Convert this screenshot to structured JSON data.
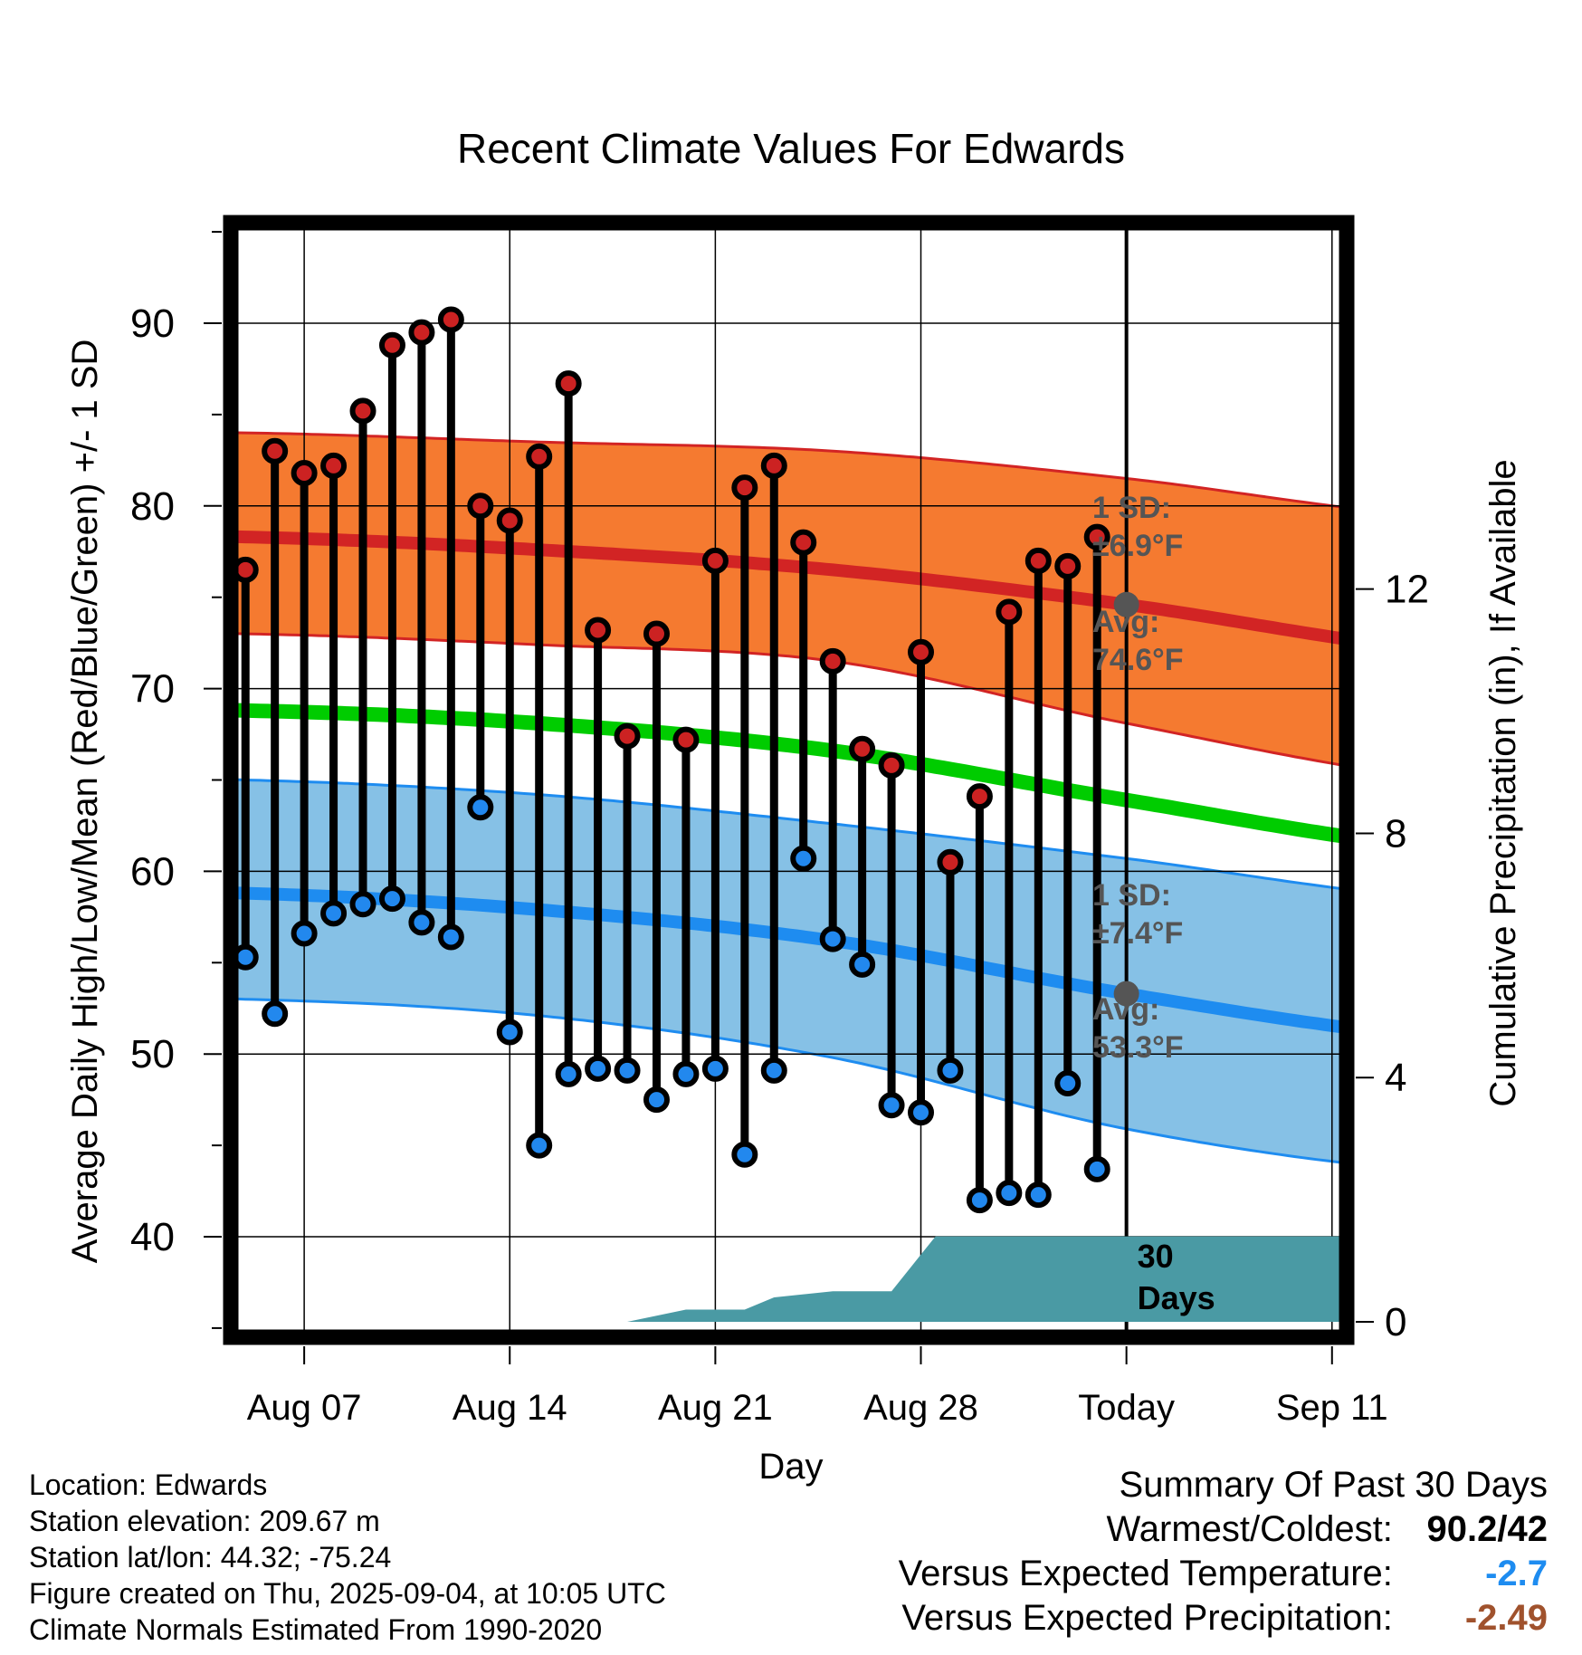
{
  "chart_data": {
    "type": "line",
    "title": "Recent Climate Values For Edwards",
    "xlabel": "Day",
    "ylabel": "Average Daily High/Low/Mean (Red/Blue/Green) +/- 1 SD",
    "y2label": "Cumulative Precipitation (in), If Available",
    "ylim": [
      34.5,
      95.5
    ],
    "y_ticks": [
      40,
      50,
      60,
      70,
      80,
      90
    ],
    "y2lim": [
      0,
      18
    ],
    "y2_ticks": [
      0,
      4,
      8,
      12
    ],
    "x_range_days": [
      -30.5,
      7.5
    ],
    "x_ticks": [
      {
        "day": -28,
        "label": "Aug 07"
      },
      {
        "day": -21,
        "label": "Aug 14"
      },
      {
        "day": -14,
        "label": "Aug 21"
      },
      {
        "day": -7,
        "label": "Aug 28"
      },
      {
        "day": 0,
        "label": "Today"
      },
      {
        "day": 7,
        "label": "Sep 11"
      }
    ],
    "grid": true,
    "high_normal": {
      "x": [
        -30,
        -20,
        -10,
        0,
        10,
        20
      ],
      "avg": [
        78.3,
        77.6,
        76.5,
        74.6,
        72.2,
        71.3
      ],
      "upper": [
        84.0,
        83.5,
        83.0,
        81.5,
        79.5,
        79.0
      ],
      "lower": [
        73.0,
        72.4,
        71.5,
        68.1,
        65.2,
        64.3
      ]
    },
    "mean_normal": {
      "x": [
        -30,
        -20,
        -10,
        0,
        10,
        20
      ],
      "values": [
        68.8,
        68.1,
        66.6,
        63.9,
        61.4,
        60.7
      ]
    },
    "low_normal": {
      "x": [
        -30,
        -20,
        -10,
        0,
        10,
        20
      ],
      "avg": [
        58.8,
        57.9,
        56.2,
        53.3,
        51.0,
        50.3
      ],
      "upper": [
        65.0,
        64.2,
        62.6,
        60.7,
        58.6,
        58.1
      ],
      "lower": [
        53.0,
        52.1,
        49.8,
        45.9,
        43.6,
        42.9
      ]
    },
    "days": [
      -30,
      -29,
      -28,
      -27,
      -26,
      -25,
      -24,
      -23,
      -22,
      -21,
      -20,
      -19,
      -18,
      -17,
      -16,
      -15,
      -14,
      -13,
      -12,
      -11,
      -10,
      -9,
      -8,
      -7,
      -6,
      -5,
      -4,
      -3,
      -2,
      -1
    ],
    "highs": [
      76.5,
      83.0,
      81.8,
      82.2,
      85.2,
      88.8,
      89.5,
      90.2,
      80.0,
      79.2,
      82.7,
      86.7,
      73.2,
      67.4,
      73.0,
      67.2,
      77.0,
      81.0,
      82.2,
      78.0,
      71.5,
      66.7,
      65.8,
      72.0,
      60.5,
      64.1,
      74.2,
      77.0,
      76.7,
      78.3
    ],
    "lows": [
      55.3,
      52.2,
      56.6,
      57.7,
      58.2,
      58.5,
      57.2,
      56.4,
      63.5,
      51.2,
      45.0,
      48.9,
      49.2,
      49.1,
      47.5,
      48.9,
      49.2,
      44.5,
      49.1,
      60.7,
      56.3,
      54.9,
      47.2,
      46.8,
      49.1,
      42.0,
      42.4,
      42.3,
      48.4,
      43.7
    ],
    "precip": {
      "x": [
        -30,
        -17,
        -15,
        -13,
        -12,
        -10,
        -8,
        -7.5,
        -7,
        -6.5,
        7.5
      ],
      "values": [
        0,
        0,
        0.2,
        0.2,
        0.4,
        0.5,
        0.5,
        0.8,
        1.1,
        1.4,
        1.4
      ]
    },
    "precip_label_value": "30",
    "precip_label_unit": "Days",
    "annotations": {
      "high_sd_label": "1 SD:",
      "high_sd_value": "±6.9°F",
      "high_avg_label": "Avg:",
      "high_avg_value": "74.6°F",
      "low_sd_label": "1 SD:",
      "low_sd_value": "±7.4°F",
      "low_avg_label": "Avg:",
      "low_avg_value": "53.3°F"
    },
    "colors": {
      "high_band": "#f57a30",
      "high_line": "#d22424",
      "low_band": "#86c1e6",
      "low_line": "#1e8cf0",
      "mean_line": "#00cc00",
      "precip_fill": "#4a9aa4",
      "high_marker": "#cc2222",
      "low_marker": "#2288ee",
      "annotation": "#555555"
    }
  },
  "info": {
    "location": "Location: Edwards",
    "elevation": "Station elevation: 209.67 m",
    "latlon": "Station lat/lon: 44.32; -75.24",
    "created": "Figure created on Thu, 2025-09-04, at 10:05 UTC",
    "normals": "Climate Normals Estimated From 1990-2020"
  },
  "summary": {
    "title": "Summary Of Past 30 Days",
    "warm_cold_label": "Warmest/Coldest:",
    "warm_cold_value": "90.2/42",
    "temp_label": "Versus Expected Temperature:",
    "temp_value": "-2.7",
    "temp_color": "#1e8cf0",
    "precip_label": "Versus Expected Precipitation:",
    "precip_value": "-2.49",
    "precip_color": "#a0522d"
  }
}
